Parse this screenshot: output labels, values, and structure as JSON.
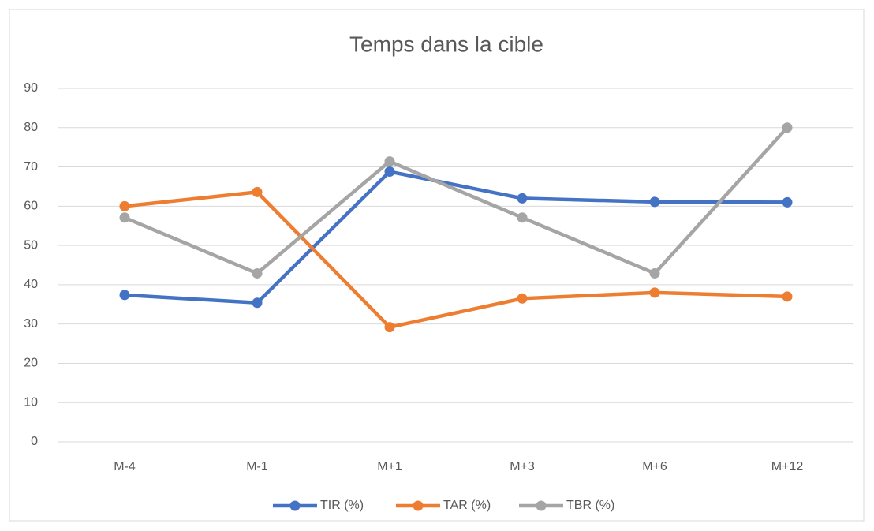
{
  "chart_data": {
    "type": "line",
    "title": "Temps dans la cible",
    "categories": [
      "M-4",
      "M-1",
      "M+1",
      "M+3",
      "M+6",
      "M+12"
    ],
    "series": [
      {
        "name": "TIR (%)",
        "color": "#4472c4",
        "values": [
          37.4,
          35.4,
          68.8,
          62,
          61.1,
          61
        ]
      },
      {
        "name": "TAR (%)",
        "color": "#ed7d31",
        "values": [
          60,
          63.6,
          29.2,
          36.5,
          38,
          37
        ]
      },
      {
        "name": "TBR (%)",
        "color": "#a5a5a5",
        "values": [
          57.1,
          42.9,
          71.4,
          57.1,
          42.9,
          80
        ]
      }
    ],
    "ylim": [
      0,
      90
    ],
    "yticks": [
      0,
      10,
      20,
      30,
      40,
      50,
      60,
      70,
      80,
      90
    ],
    "grid": true,
    "legend": "bottom"
  }
}
